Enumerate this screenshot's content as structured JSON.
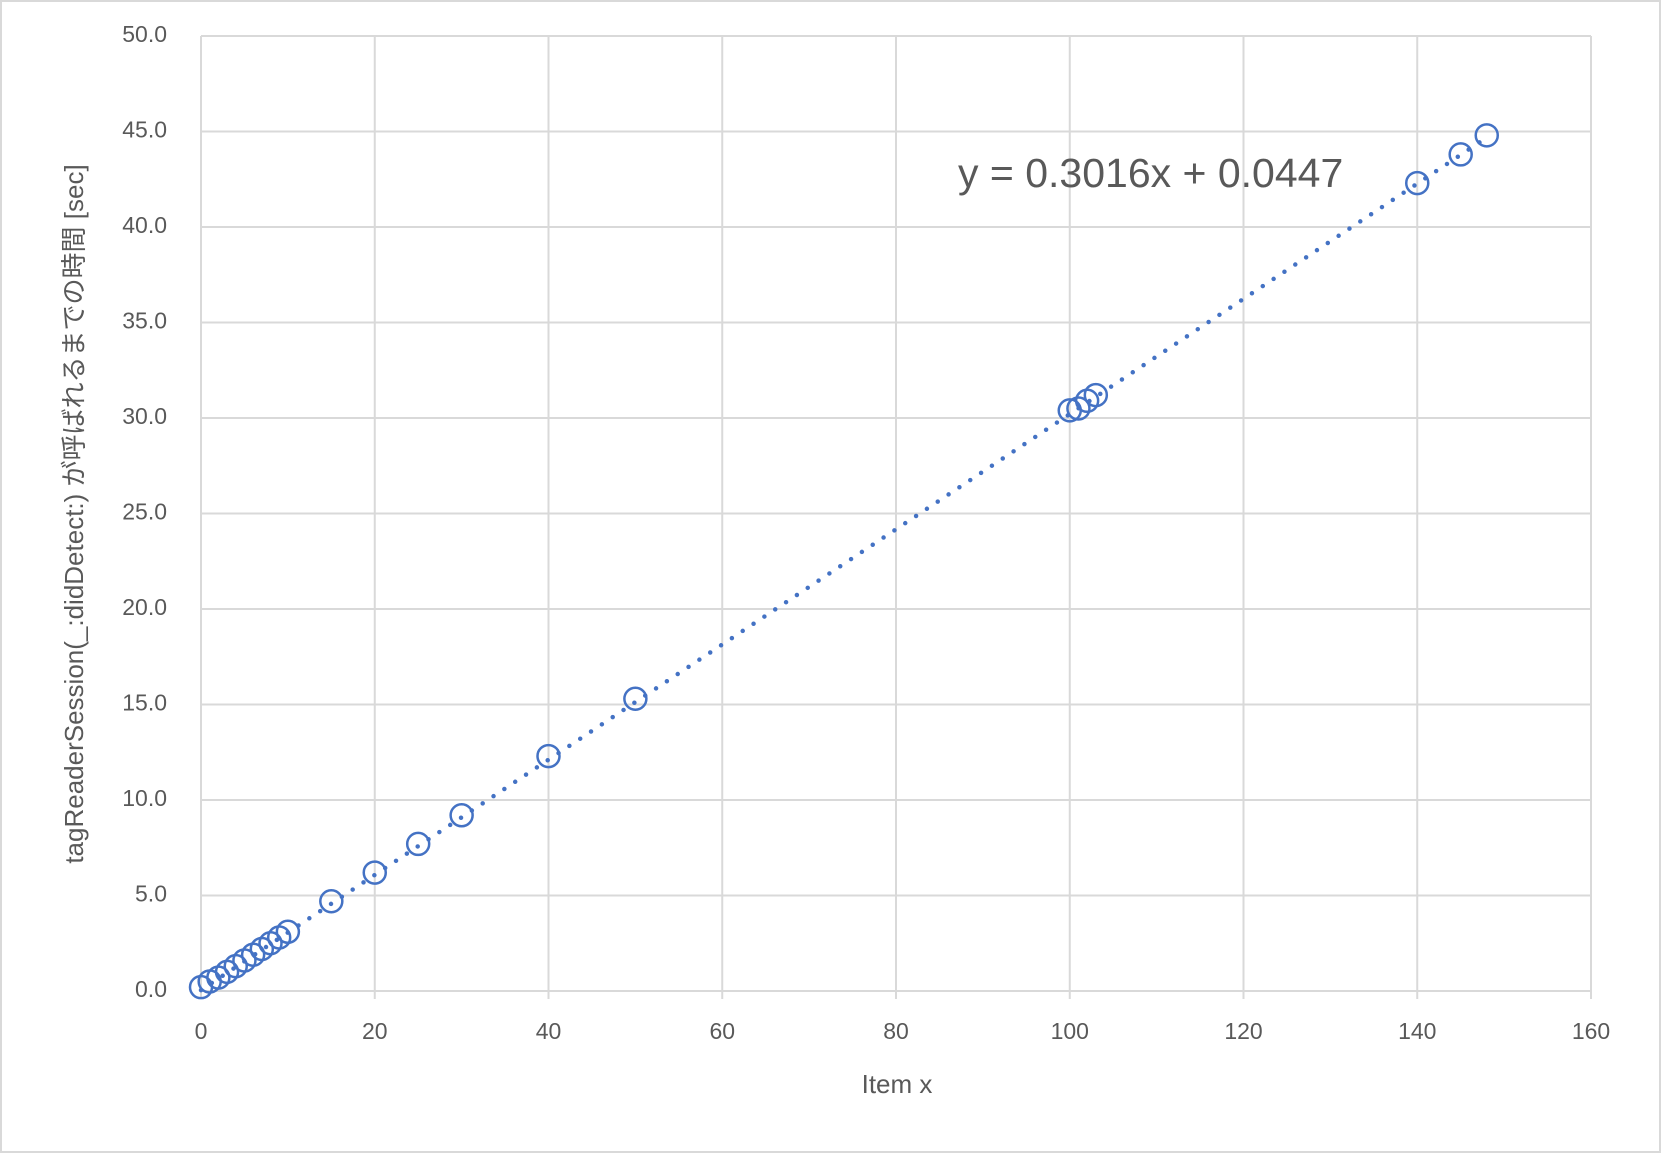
{
  "chart_data": {
    "type": "scatter",
    "x_label": "Item x",
    "y_label": "tagReaderSession(_:didDetect:) が呼ばれるまでの時間 [sec]",
    "x": [
      0,
      1,
      2,
      3,
      4,
      5,
      6,
      7,
      8,
      9,
      10,
      15,
      20,
      25,
      30,
      40,
      50,
      100,
      101,
      102,
      103,
      140,
      145,
      148
    ],
    "values": [
      0.2,
      0.5,
      0.7,
      1.0,
      1.3,
      1.6,
      1.9,
      2.2,
      2.5,
      2.8,
      3.1,
      4.7,
      6.2,
      7.7,
      9.2,
      12.3,
      15.3,
      30.4,
      30.5,
      30.9,
      31.2,
      42.3,
      43.8,
      44.8
    ],
    "color": "#4472c4",
    "xlim": [
      0,
      160
    ],
    "xticks": [
      0,
      20,
      40,
      60,
      80,
      100,
      120,
      140,
      160
    ],
    "ylim": [
      0,
      50
    ],
    "yticks": [
      {
        "value": 0,
        "label": "0.0"
      },
      {
        "value": 5,
        "label": "5.0"
      },
      {
        "value": 10,
        "label": "10.0"
      },
      {
        "value": 15,
        "label": "15.0"
      },
      {
        "value": 20,
        "label": "20.0"
      },
      {
        "value": 25,
        "label": "25.0"
      },
      {
        "value": 30,
        "label": "30.0"
      },
      {
        "value": 35,
        "label": "35.0"
      },
      {
        "value": 40,
        "label": "40.0"
      },
      {
        "value": 45,
        "label": "45.0"
      },
      {
        "value": 50,
        "label": "50.0"
      }
    ],
    "grid": true,
    "trendline": {
      "slope": 0.3016,
      "intercept": 0.0447,
      "label": "y = 0.3016x + 0.0447"
    }
  }
}
